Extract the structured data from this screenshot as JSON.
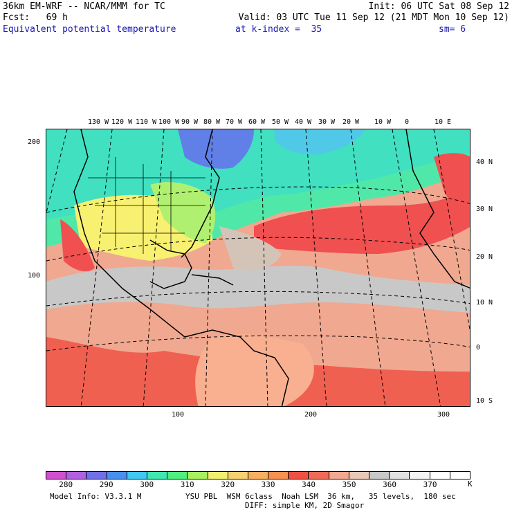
{
  "header": {
    "model_title": "36km EM-WRF -- NCAR/MMM for TC",
    "init": "Init: 06 UTC Sat 08 Sep 12",
    "forecast": "Fcst:   69 h",
    "valid": "Valid: 03 UTC Tue 11 Sep 12 (21 MDT Mon 10 Sep 12)",
    "field": "Equivalent potential temperature",
    "level": "at k-index =  35",
    "smoothing": "sm= 6"
  },
  "map": {
    "top_lon_labels": [
      "130 W",
      "120 W",
      "110 W",
      "100 W",
      "90 W",
      "80 W",
      "70 W",
      "60 W",
      "50 W",
      "40 W",
      "30 W",
      "20 W",
      "10 W",
      "0",
      "10 E"
    ],
    "right_lat_labels": [
      "40 N",
      "30 N",
      "20 N",
      "10 N",
      "0",
      "10 S"
    ],
    "left_grid_labels": [
      "200",
      "100"
    ],
    "bottom_grid_labels": [
      "100",
      "200",
      "300"
    ],
    "colors": {
      "gray_band": "#c8c8c8",
      "salmon": "#f0a890",
      "red": "#f05050",
      "orange": "#f8b878",
      "yellow": "#f8f070",
      "green": "#90f078",
      "teal": "#50e8a8",
      "cyan": "#50c8e8",
      "blue": "#6080e8"
    }
  },
  "colorbar": {
    "colors": [
      "#d050d0",
      "#b060e0",
      "#7070e8",
      "#4890f0",
      "#40c8f0",
      "#40e8b0",
      "#50f080",
      "#a8f060",
      "#f0f070",
      "#f8d070",
      "#f8b060",
      "#f89050",
      "#f05040",
      "#f06a58",
      "#f0a890",
      "#e8c8b8",
      "#c8c8c8",
      "#e0e0e0",
      "#f4f4f4",
      "#ffffff",
      "#ffffff"
    ],
    "labels": [
      "280",
      "290",
      "300",
      "310",
      "320",
      "330",
      "340",
      "350",
      "360",
      "370"
    ],
    "unit": "K"
  },
  "footer": {
    "model_info": "Model Info: V3.3.1 M",
    "physics": "YSU PBL  WSM 6class  Noah LSM  36 km,   35 levels,  180 sec",
    "diffusion": "DIFF: simple KM, 2D Smagor"
  }
}
